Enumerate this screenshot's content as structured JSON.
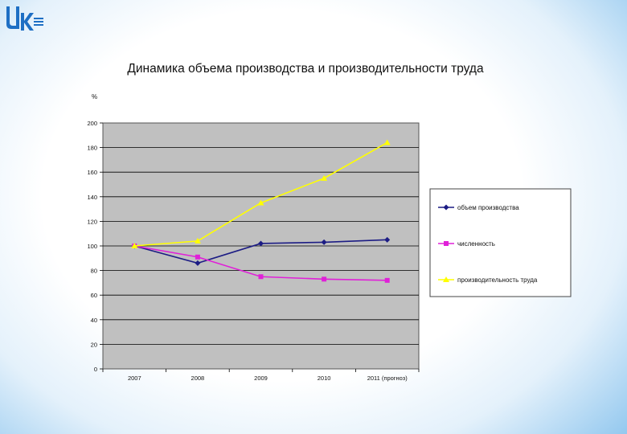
{
  "logo": {
    "text": "UK"
  },
  "chart_data": {
    "type": "line",
    "title": "Динамика объема производства и производительности труда",
    "ylabel": "%",
    "xlabel": "",
    "ylim": [
      0,
      200
    ],
    "yticks": [
      0,
      20,
      40,
      60,
      80,
      100,
      120,
      140,
      160,
      180,
      200
    ],
    "categories": [
      "2007",
      "2008",
      "2009",
      "2010",
      "2011 (прогноз)"
    ],
    "grid": true,
    "legend_position": "right",
    "series": [
      {
        "name": "объем производства",
        "color": "#1c1c84",
        "marker": "diamond",
        "values": [
          100,
          86,
          102,
          103,
          105
        ]
      },
      {
        "name": "численность",
        "color": "#e020d8",
        "marker": "square",
        "values": [
          100,
          91,
          75,
          73,
          72
        ]
      },
      {
        "name": "производительность труда",
        "color": "#ffff00",
        "marker": "triangle",
        "values": [
          100,
          104,
          135,
          155,
          184
        ]
      }
    ]
  }
}
